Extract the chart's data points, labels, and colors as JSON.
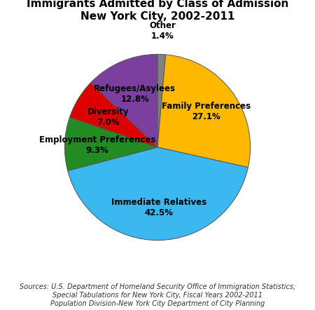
{
  "title": "Immigrants Admitted by Class of Admission\nNew York City, 2002-2011",
  "title_fontsize": 11,
  "slices": [
    {
      "label": "Other\n1.4%",
      "value": 1.4,
      "color": "#808080"
    },
    {
      "label": "Family Preferences\n27.1%",
      "value": 27.1,
      "color": "#FFB800"
    },
    {
      "label": "Immediate Relatives\n42.5%",
      "value": 42.5,
      "color": "#3BB8F0"
    },
    {
      "label": "Employment Preferences\n9.3%",
      "value": 9.3,
      "color": "#228B22"
    },
    {
      "label": "Diversity\n7.0%",
      "value": 7.0,
      "color": "#DD0000"
    },
    {
      "label": "Refugees/Asylees\n12.8%",
      "value": 12.8,
      "color": "#7B3FA0"
    }
  ],
  "startangle": 90,
  "source_text": "Sources: U.S. Department of Homeland Security Office of Immigration Statistics;\nSpecial Tabulations for New York City, Fiscal Years 2002-2011\nPopulation Division-New York City Department of City Planning",
  "background_color": "#FFFFFF",
  "label_fontsize": 8.5,
  "source_fontsize": 7.0
}
